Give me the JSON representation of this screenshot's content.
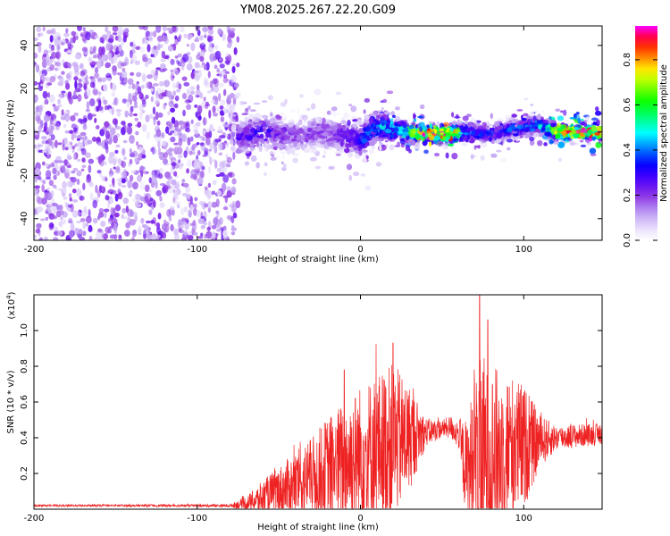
{
  "title": "YM08.2025.267.22.20.G09",
  "colors": {
    "snr_line": "#ee2222",
    "axis": "#000000",
    "colormap": [
      "#ffffff",
      "#e2d6fb",
      "#b38af0",
      "#8a2be2",
      "#4b00ff",
      "#0000ff",
      "#0080ff",
      "#00ffff",
      "#00ff80",
      "#00ff00",
      "#80ff00",
      "#ffff00",
      "#ff8000",
      "#ff0000",
      "#ff00ff"
    ]
  },
  "chart_data": [
    {
      "type": "heatmap",
      "xlabel": "Height of straight line (km)",
      "ylabel": "Frequency (Hz)",
      "xlim": [
        -200,
        148
      ],
      "ylim": [
        -50,
        49
      ],
      "xticks": [
        -200,
        -100,
        0,
        100
      ],
      "yticks": [
        -40,
        -20,
        0,
        20,
        40
      ],
      "colorbar": {
        "label": "Normalized spectral amplitude",
        "range": [
          0,
          0.95
        ],
        "ticks": [
          "0.0",
          "0.2",
          "0.4",
          "0.6",
          "0.8"
        ],
        "tick_values": [
          0,
          0.2,
          0.4,
          0.6,
          0.8
        ]
      },
      "ridge": [
        {
          "x": -78,
          "f": -3,
          "amp": 0.25
        },
        {
          "x": -60,
          "f": 0,
          "amp": 0.3
        },
        {
          "x": -45,
          "f": -2,
          "amp": 0.2
        },
        {
          "x": -25,
          "f": 0,
          "amp": 0.2
        },
        {
          "x": -10,
          "f": -2,
          "amp": 0.25
        },
        {
          "x": 0,
          "f": -4,
          "amp": 0.35
        },
        {
          "x": 10,
          "f": 3,
          "amp": 0.4
        },
        {
          "x": 25,
          "f": 1,
          "amp": 0.5
        },
        {
          "x": 35,
          "f": -1,
          "amp": 0.75
        },
        {
          "x": 45,
          "f": -1,
          "amp": 0.95
        },
        {
          "x": 55,
          "f": -1,
          "amp": 0.85
        },
        {
          "x": 65,
          "f": 0,
          "amp": 0.4
        },
        {
          "x": 80,
          "f": -1,
          "amp": 0.35
        },
        {
          "x": 95,
          "f": 2,
          "amp": 0.35
        },
        {
          "x": 110,
          "f": 3,
          "amp": 0.45
        },
        {
          "x": 120,
          "f": 0,
          "amp": 0.7
        },
        {
          "x": 130,
          "f": 0,
          "amp": 0.85
        },
        {
          "x": 145,
          "f": 0,
          "amp": 0.9
        }
      ],
      "noise_region_x": [
        -200,
        -75
      ]
    },
    {
      "type": "line",
      "xlabel": "Height of straight line (km)",
      "ylabel": "SNR (10 * v/v)",
      "scale_label": "(x10",
      "scale_exp": "4",
      "scale_suffix": ")",
      "xlim": [
        -200,
        148
      ],
      "ylim": [
        0,
        1.2
      ],
      "xticks": [
        -200,
        -100,
        0,
        100
      ],
      "yticks": [
        "0.2",
        "0.4",
        "0.6",
        "0.8",
        "1.0"
      ],
      "ytick_values": [
        0.2,
        0.4,
        0.6,
        0.8,
        1.0
      ],
      "envelope": {
        "baseline_x": [
          -200,
          -80,
          -70,
          -60,
          -50,
          -40,
          -30,
          -20,
          -10,
          0,
          10,
          20,
          30,
          40,
          50,
          55,
          60,
          65,
          70,
          80,
          90,
          100,
          110,
          120,
          130,
          148
        ],
        "baseline_y": [
          0.02,
          0.02,
          0.03,
          0.06,
          0.1,
          0.14,
          0.18,
          0.22,
          0.26,
          0.3,
          0.34,
          0.37,
          0.4,
          0.43,
          0.45,
          0.46,
          0.42,
          0.2,
          0.25,
          0.3,
          0.33,
          0.35,
          0.38,
          0.4,
          0.41,
          0.42
        ],
        "amp_x": [
          -200,
          -80,
          -70,
          -60,
          -50,
          -40,
          -30,
          -20,
          -10,
          0,
          10,
          20,
          30,
          40,
          50,
          60,
          65,
          70,
          75,
          80,
          90,
          100,
          110,
          120,
          148
        ],
        "amp_y": [
          0.005,
          0.008,
          0.04,
          0.1,
          0.14,
          0.18,
          0.22,
          0.3,
          0.35,
          0.4,
          0.42,
          0.45,
          0.3,
          0.08,
          0.05,
          0.08,
          0.3,
          0.5,
          0.6,
          0.5,
          0.45,
          0.35,
          0.15,
          0.07,
          0.06
        ]
      },
      "peaks": [
        {
          "x": 20,
          "y": 0.93
        },
        {
          "x": 73,
          "y": 1.2
        },
        {
          "x": 78,
          "y": 1.06
        },
        {
          "x": -10,
          "y": 0.78
        }
      ]
    }
  ]
}
